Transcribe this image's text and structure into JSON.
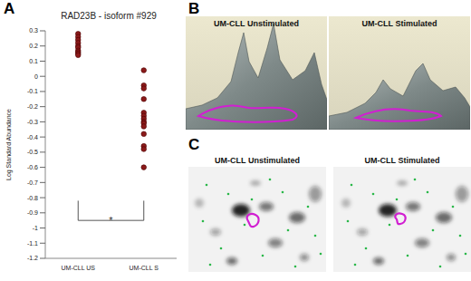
{
  "panel_labels": [
    "A",
    "B",
    "C"
  ],
  "chart_data": {
    "type": "scatter",
    "title": "RAD23B - isoform #929",
    "y_label": "Log Standard Abundance",
    "categories": [
      "UM-CLL US",
      "UM-CLL S"
    ],
    "values": [
      [
        0.28,
        0.26,
        0.24,
        0.22,
        0.2,
        0.19,
        0.17,
        0.16,
        0.15,
        0.14
      ],
      [
        0.04,
        -0.06,
        -0.08,
        -0.15,
        -0.24,
        -0.26,
        -0.28,
        -0.3,
        -0.31,
        -0.33,
        -0.38,
        -0.46,
        -0.48,
        -0.6
      ]
    ],
    "color": "#8b1a1a",
    "marker": "circle",
    "ylim": [
      -1.2,
      0.3
    ],
    "yticks": [
      -1.2,
      -1.1,
      -1,
      -0.9,
      -0.8,
      -0.7,
      -0.6,
      -0.5,
      -0.4,
      -0.3,
      -0.2,
      -0.1,
      0,
      0.1,
      0.2,
      0.3
    ],
    "grid": false,
    "significance": {
      "text": "*",
      "top": -0.82,
      "bottom": -0.95
    }
  },
  "panel_b": {
    "labels": [
      "UM-CLL Unstimulated",
      "UM-CLL Stimulated"
    ]
  },
  "panel_c": {
    "labels": [
      "UM-CLL Unstimulated",
      "UM-CLL Stimulated"
    ]
  }
}
